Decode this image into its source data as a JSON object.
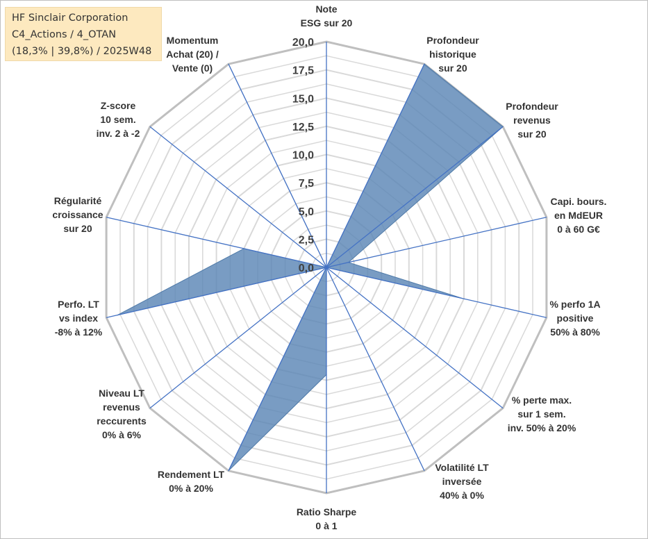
{
  "info": {
    "line1": "HF Sinclair Corporation",
    "line2": "C4_Actions / 4_OTAN",
    "line3": "(18,3% | 39,8%) / 2025W48"
  },
  "colors": {
    "fill": "#5b86b6",
    "edge": "#4f7aa8",
    "spoke": "#4472c4",
    "grid_outer": "#bfbfbf",
    "grid_inner": "#d9d9d9"
  },
  "chart_data": {
    "type": "radar",
    "title": "",
    "rmin": 0,
    "rmax": 20,
    "ticks": [
      "0,0",
      "2,5",
      "5,0",
      "7,5",
      "10,0",
      "12,5",
      "15,0",
      "17,5",
      "20,0"
    ],
    "tick_values": [
      0,
      2.5,
      5,
      7.5,
      10,
      12.5,
      15,
      17.5,
      20
    ],
    "categories": [
      {
        "key": "esg",
        "lines": [
          "Note",
          "ESG sur 20"
        ]
      },
      {
        "key": "prof_hist",
        "lines": [
          "Profondeur",
          "historique",
          "sur 20"
        ]
      },
      {
        "key": "prof_rev",
        "lines": [
          "Profondeur",
          "revenus",
          "sur 20"
        ]
      },
      {
        "key": "capi",
        "lines": [
          "Capi. bours.",
          "en MdEUR",
          "0 à 60 G€"
        ]
      },
      {
        "key": "perfo_1a",
        "lines": [
          "% perfo 1A",
          "positive",
          "50% à 80%"
        ]
      },
      {
        "key": "perte_max",
        "lines": [
          "% perte max.",
          "sur 1 sem.",
          "inv. 50% à 20%"
        ]
      },
      {
        "key": "volatilite",
        "lines": [
          "Volatilité LT",
          "inversée",
          "40% à 0%"
        ]
      },
      {
        "key": "sharpe",
        "lines": [
          "Ratio Sharpe",
          "0 à 1"
        ]
      },
      {
        "key": "rendement",
        "lines": [
          "Rendement LT",
          "0% à 20%"
        ]
      },
      {
        "key": "niveau_rev",
        "lines": [
          "Niveau LT",
          "revenus",
          "reccurents",
          "0% à 6%"
        ]
      },
      {
        "key": "perfo_lt",
        "lines": [
          "Perfo. LT",
          "vs index",
          "-8% à 12%"
        ]
      },
      {
        "key": "regularite",
        "lines": [
          "Régularité",
          "croissance",
          "sur 20"
        ]
      },
      {
        "key": "zscore",
        "lines": [
          "Z-score",
          "10 sem.",
          "inv. 2 à -2"
        ]
      },
      {
        "key": "momentum",
        "lines": [
          "Momentum",
          "Achat (20) /",
          "Vente (0)"
        ]
      }
    ],
    "series": [
      {
        "name": "HF Sinclair Corporation",
        "values": [
          0,
          20,
          20,
          2.0,
          12.5,
          0,
          0,
          9.5,
          20,
          0,
          19,
          7.5,
          0,
          20
        ]
      }
    ]
  }
}
